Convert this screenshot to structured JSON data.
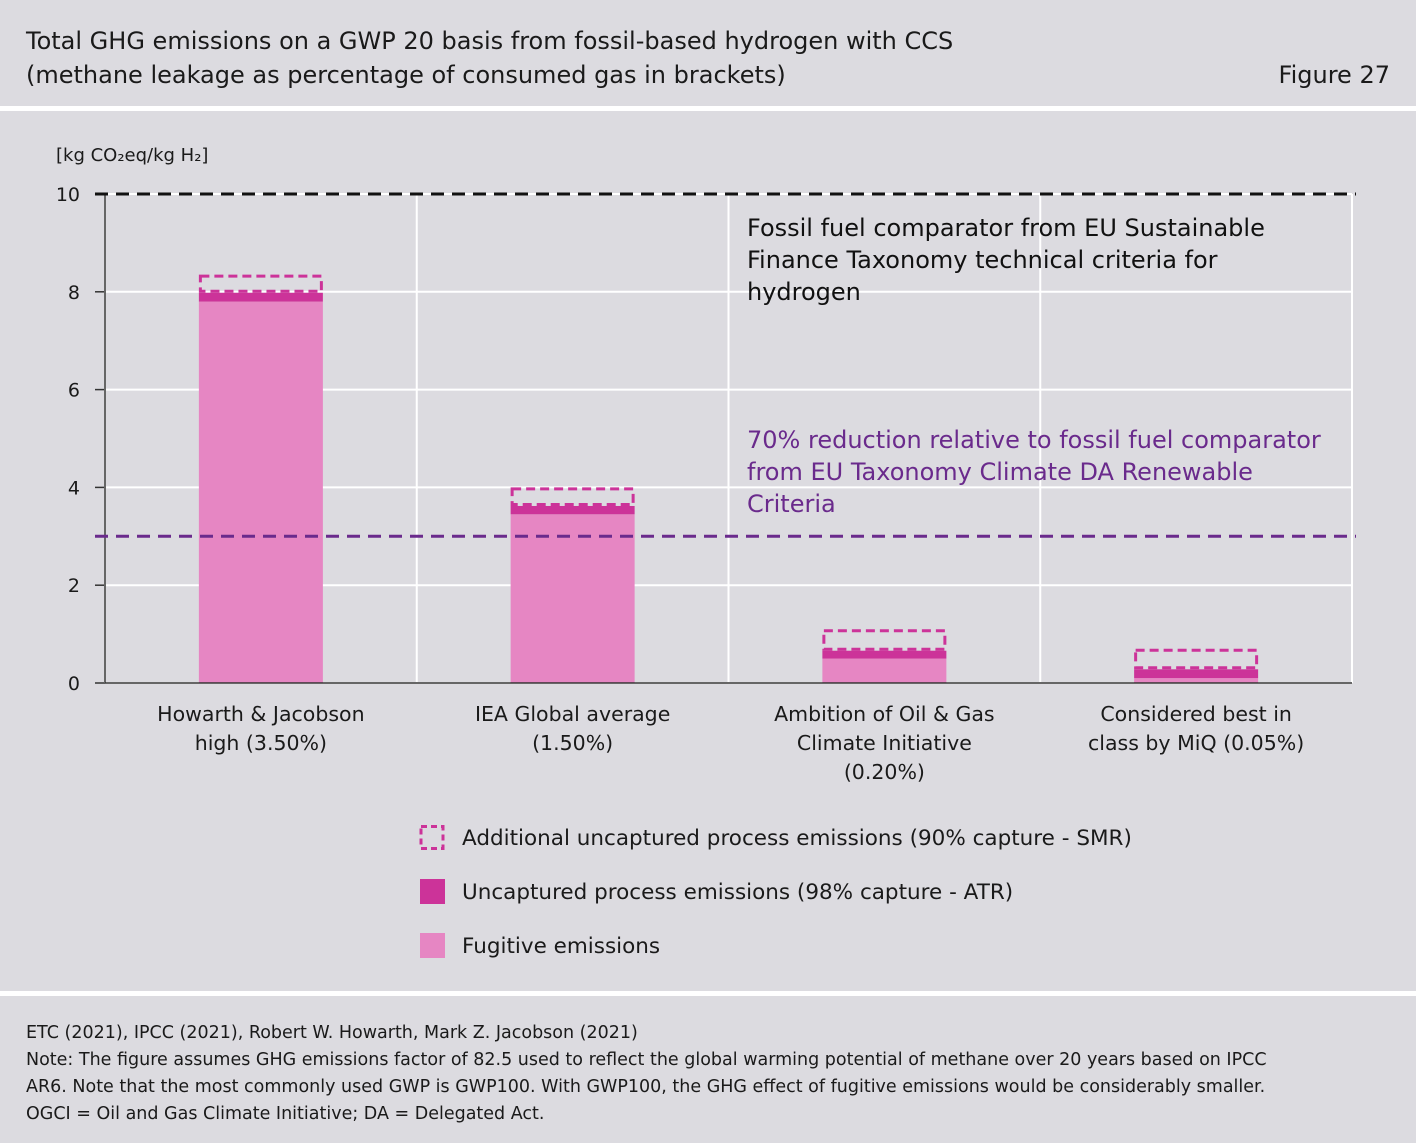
{
  "header": {
    "title_line1": "Total GHG emissions on a GWP 20 basis from fossil-based hydrogen with CCS",
    "title_line2": "(methane leakage as percentage of consumed gas in brackets)",
    "figure_label": "Figure 27"
  },
  "chart_data": {
    "type": "bar",
    "stacked": true,
    "unit_label": "[kg CO₂eq/kg H₂]",
    "ylim": [
      0,
      10
    ],
    "yticks": [
      0,
      2,
      4,
      6,
      8,
      10
    ],
    "grid": true,
    "categories": [
      [
        "Howarth & Jacobson",
        "high (3.50%)"
      ],
      [
        "IEA Global average",
        "(1.50%)"
      ],
      [
        "Ambition of Oil & Gas",
        "Climate Initiative",
        "(0.20%)"
      ],
      [
        "Considered best in",
        "class by MiQ (0.05%)"
      ]
    ],
    "series": [
      {
        "name": "Fugitive emissions",
        "style": "solid",
        "color": "#e686c3",
        "values": [
          7.8,
          3.45,
          0.5,
          0.1
        ]
      },
      {
        "name": "Uncaptured process emissions (98% capture - ATR)",
        "style": "solid",
        "color": "#cc3399",
        "values": [
          0.18,
          0.17,
          0.16,
          0.18
        ]
      },
      {
        "name": "Additional uncaptured process emissions (90% capture - SMR)",
        "style": "dashed",
        "color": "#cc3399",
        "values": [
          0.37,
          0.38,
          0.44,
          0.42
        ]
      }
    ],
    "reference_lines": [
      {
        "value": 10.0,
        "color": "#111111",
        "label_lines": [
          "Fossil fuel comparator from EU Sustainable",
          "Finance Taxonomy technical criteria for",
          "hydrogen"
        ]
      },
      {
        "value": 3.0,
        "color": "#6a2a8c",
        "label_lines": [
          "70% reduction relative to fossil fuel comparator",
          "from EU Taxonomy Climate DA Renewable",
          "Criteria"
        ]
      }
    ],
    "legend_position": "bottom"
  },
  "footer": {
    "source": "ETC (2021), IPCC (2021), Robert W. Howarth, Mark Z. Jacobson (2021)",
    "note_line1": "Note: The figure assumes GHG emissions factor of 82.5 used to reflect the global warming potential of methane over 20 years based on IPCC",
    "note_line2": "AR6. Note that the most commonly used GWP is GWP100. With GWP100, the GHG effect of fugitive emissions would be considerably smaller.",
    "note_line3": "OGCI = Oil and Gas Climate Initiative; DA = Delegated Act."
  }
}
